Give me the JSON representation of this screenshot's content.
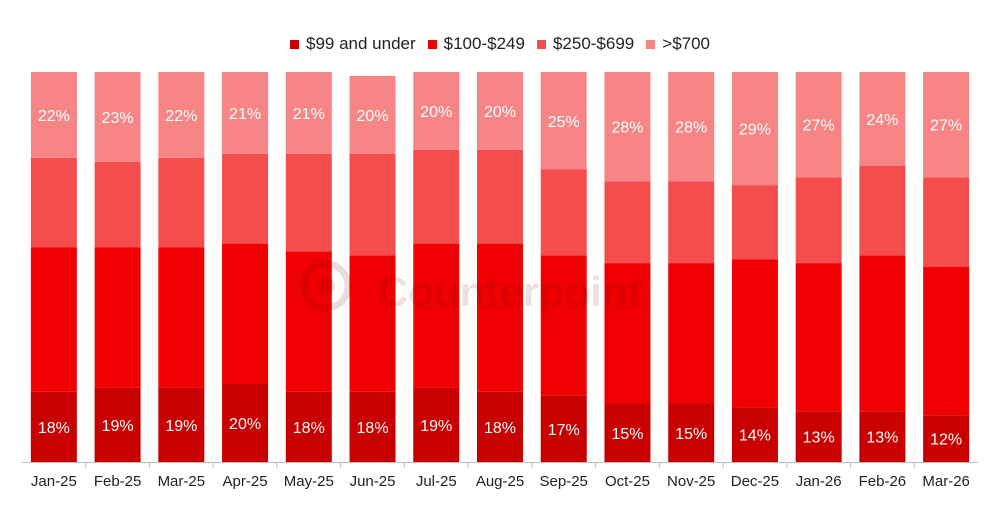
{
  "legend": {
    "items": [
      {
        "label": "$99 and under",
        "color": "#c80000"
      },
      {
        "label": "$100-$249",
        "color": "#f00000"
      },
      {
        "label": "$250-$699",
        "color": "#f54c4c"
      },
      {
        "label": ">$700",
        "color": "#f78585"
      }
    ]
  },
  "watermark": {
    "text": "Counterpoint"
  },
  "chart_data": {
    "type": "bar",
    "stacked": true,
    "normalized": true,
    "categories": [
      "Jan-25",
      "Feb-25",
      "Mar-25",
      "Apr-25",
      "May-25",
      "Jun-25",
      "Jul-25",
      "Aug-25",
      "Sep-25",
      "Oct-25",
      "Nov-25",
      "Dec-25",
      "Jan-26",
      "Feb-26",
      "Mar-26"
    ],
    "series": [
      {
        "name": "$99 and under",
        "color": "#c80000",
        "values": [
          18,
          19,
          19,
          20,
          18,
          18,
          19,
          18,
          17,
          15,
          15,
          14,
          13,
          13,
          12
        ],
        "labels": [
          "18%",
          "19%",
          "19%",
          "20%",
          "18%",
          "18%",
          "19%",
          "18%",
          "17%",
          "15%",
          "15%",
          "14%",
          "13%",
          "13%",
          "12%"
        ]
      },
      {
        "name": "$100-$249",
        "color": "#f00000",
        "values": [
          37,
          36,
          36,
          36,
          36,
          35,
          37,
          38,
          36,
          36,
          36,
          38,
          38,
          40,
          38
        ]
      },
      {
        "name": "$250-$699",
        "color": "#f54c4c",
        "values": [
          23,
          22,
          23,
          23,
          25,
          26,
          24,
          24,
          22,
          21,
          21,
          19,
          22,
          23,
          23
        ]
      },
      {
        "name": ">$700",
        "color": "#f78585",
        "values": [
          22,
          23,
          22,
          21,
          21,
          20,
          20,
          20,
          25,
          28,
          28,
          29,
          27,
          24,
          27
        ],
        "labels": [
          "22%",
          "23%",
          "22%",
          "21%",
          "21%",
          "20%",
          "20%",
          "20%",
          "25%",
          "28%",
          "28%",
          "29%",
          "27%",
          "24%",
          "27%"
        ]
      }
    ],
    "ylim": [
      0,
      100
    ],
    "grid": false,
    "legend_position": "top"
  }
}
